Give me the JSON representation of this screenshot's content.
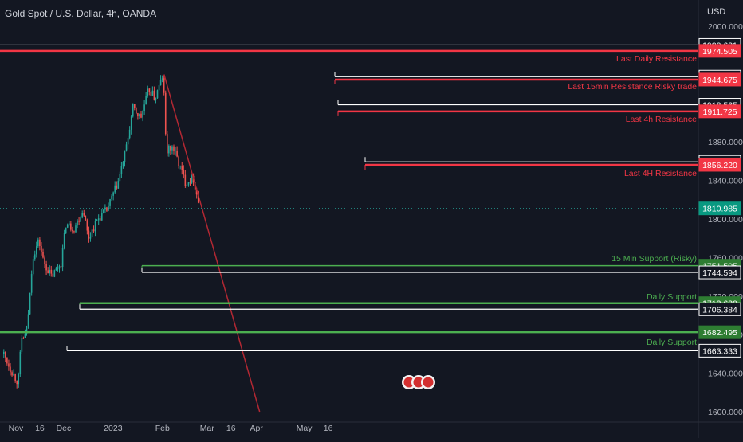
{
  "title": "Gold Spot / U.S. Dollar, 4h, OANDA",
  "currency": "USD",
  "colors": {
    "background": "#131722",
    "text": "#d1d4dc",
    "up": "#26a69a",
    "down": "#ef5350",
    "resistance": "#f23645",
    "support": "#4caf50",
    "trendline": "#b22833",
    "white_line": "#ffffff"
  },
  "chart_data": {
    "type": "candlestick",
    "title": "Gold Spot / U.S. Dollar, 4h, OANDA",
    "ylabel": "USD",
    "ylim": [
      1600,
      2000
    ],
    "y_ticks": [
      "1600.000",
      "1640.000",
      "1680.000",
      "1720.000",
      "1760.000",
      "1800.000",
      "1840.000",
      "1880.000",
      "2000.000"
    ],
    "x_ticks": [
      "Nov",
      "16",
      "Dec",
      "2023",
      "Feb",
      "Mar",
      "16",
      "Apr",
      "May",
      "16"
    ],
    "x_tick_dates": [
      "2022-11-01",
      "2022-11-16",
      "2022-12-01",
      "2023-01-01",
      "2023-02-01",
      "2023-03-01",
      "2023-03-16",
      "2023-04-01",
      "2023-05-01",
      "2023-05-16"
    ],
    "price_path": [
      {
        "date": "2022-10-24",
        "price": 1660
      },
      {
        "date": "2022-10-28",
        "price": 1645
      },
      {
        "date": "2022-11-02",
        "price": 1630
      },
      {
        "date": "2022-11-04",
        "price": 1675
      },
      {
        "date": "2022-11-07",
        "price": 1680
      },
      {
        "date": "2022-11-09",
        "price": 1712
      },
      {
        "date": "2022-11-11",
        "price": 1760
      },
      {
        "date": "2022-11-15",
        "price": 1778
      },
      {
        "date": "2022-11-18",
        "price": 1755
      },
      {
        "date": "2022-11-23",
        "price": 1740
      },
      {
        "date": "2022-11-29",
        "price": 1755
      },
      {
        "date": "2022-12-02",
        "price": 1795
      },
      {
        "date": "2022-12-07",
        "price": 1790
      },
      {
        "date": "2022-12-13",
        "price": 1810
      },
      {
        "date": "2022-12-16",
        "price": 1780
      },
      {
        "date": "2022-12-22",
        "price": 1800
      },
      {
        "date": "2022-12-28",
        "price": 1810
      },
      {
        "date": "2023-01-04",
        "price": 1840
      },
      {
        "date": "2023-01-09",
        "price": 1875
      },
      {
        "date": "2023-01-13",
        "price": 1915
      },
      {
        "date": "2023-01-18",
        "price": 1905
      },
      {
        "date": "2023-01-23",
        "price": 1935
      },
      {
        "date": "2023-01-27",
        "price": 1925
      },
      {
        "date": "2023-02-01",
        "price": 1950
      },
      {
        "date": "2023-02-03",
        "price": 1870
      },
      {
        "date": "2023-02-07",
        "price": 1875
      },
      {
        "date": "2023-02-10",
        "price": 1862
      },
      {
        "date": "2023-02-15",
        "price": 1838
      },
      {
        "date": "2023-02-20",
        "price": 1842
      },
      {
        "date": "2023-02-24",
        "price": 1811
      }
    ],
    "last_price": "1810.985",
    "levels": [
      {
        "price": 1980.621,
        "label": "1980.621",
        "kind": "white",
        "annotation": ""
      },
      {
        "price": 1974.505,
        "label": "1974.505",
        "kind": "resistance",
        "annotation": ""
      },
      {
        "price": 1947.72,
        "label": "1947.720",
        "kind": "white",
        "annotation": "Last Daily Resistance"
      },
      {
        "price": 1944.675,
        "label": "1944.675",
        "kind": "resistance",
        "annotation": ""
      },
      {
        "price": 1918.565,
        "label": "1918.565",
        "kind": "white",
        "annotation": "Last 15min Resistance Risky trade"
      },
      {
        "price": 1911.725,
        "label": "1911.725",
        "kind": "resistance",
        "annotation": ""
      },
      {
        "price": 1859.331,
        "label": "1859.331",
        "kind": "white",
        "annotation": "Last 4h Resistance"
      },
      {
        "price": 1856.22,
        "label": "1856.220",
        "kind": "resistance",
        "annotation": ""
      },
      {
        "price": 1751.505,
        "label": "1751.505",
        "kind": "support",
        "annotation": "Last 4H Resistance"
      },
      {
        "price": 1744.594,
        "label": "1744.594",
        "kind": "white",
        "annotation": ""
      },
      {
        "price": 1712.63,
        "label": "1712.630",
        "kind": "support",
        "annotation": "15 Min Support (Risky)"
      },
      {
        "price": 1706.384,
        "label": "1706.384",
        "kind": "white",
        "annotation": "Daily Support"
      },
      {
        "price": 1682.495,
        "label": "1682.495",
        "kind": "support",
        "annotation": ""
      },
      {
        "price": 1663.333,
        "label": "1663.333",
        "kind": "white",
        "annotation": "Daily Support"
      }
    ],
    "trendline": [
      {
        "date": "2023-02-02",
        "price": 1950
      },
      {
        "date": "2023-04-03",
        "price": 1600
      }
    ]
  }
}
